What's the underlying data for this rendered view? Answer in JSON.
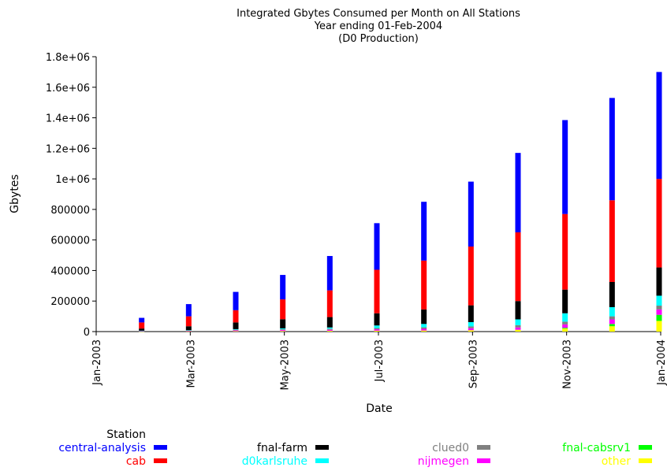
{
  "chart_data": {
    "type": "bar",
    "stacked": true,
    "title_lines": [
      "Integrated Gbytes Consumed per Month on All Stations",
      "Year ending 01-Feb-2004",
      "(D0 Production)"
    ],
    "xlabel": "Date",
    "ylabel": "Gbytes",
    "x_ticks": [
      "Jan-2003",
      "Mar-2003",
      "May-2003",
      "Jul-2003",
      "Sep-2003",
      "Nov-2003",
      "Jan-2004"
    ],
    "y_ticks": [
      "0",
      "200000",
      "400000",
      "600000",
      "800000",
      "1e+06",
      "1.2e+06",
      "1.4e+06",
      "1.6e+06",
      "1.8e+06"
    ],
    "ylim": [
      0,
      1800000
    ],
    "x": [
      "Feb-2003",
      "Mar-2003",
      "Apr-2003",
      "May-2003",
      "Jun-2003",
      "Jul-2003",
      "Aug-2003",
      "Sep-2003",
      "Oct-2003",
      "Nov-2003",
      "Dec-2003",
      "Jan-2004"
    ],
    "legend_title": "Station",
    "series": [
      {
        "name": "other",
        "color": "#ffff00",
        "values": [
          1000,
          2000,
          3000,
          4000,
          5000,
          6000,
          7000,
          9000,
          12000,
          20000,
          35000,
          70000
        ]
      },
      {
        "name": "fnal-cabsrv1",
        "color": "#00ff00",
        "values": [
          0,
          0,
          0,
          0,
          0,
          0,
          0,
          0,
          0,
          5000,
          15000,
          40000
        ]
      },
      {
        "name": "nijmegen",
        "color": "#ff00ff",
        "values": [
          2000,
          3000,
          5000,
          6000,
          7000,
          9000,
          11000,
          13000,
          15000,
          22000,
          30000,
          35000
        ]
      },
      {
        "name": "clued0",
        "color": "#808080",
        "values": [
          2000,
          3000,
          4000,
          5000,
          7000,
          8000,
          10000,
          12000,
          15000,
          18000,
          20000,
          25000
        ]
      },
      {
        "name": "d0karlsruhe",
        "color": "#00ffff",
        "values": [
          1000,
          2000,
          4000,
          6000,
          8000,
          17000,
          22000,
          28000,
          38000,
          55000,
          60000,
          65000
        ]
      },
      {
        "name": "fnal-farm",
        "color": "#000000",
        "values": [
          14000,
          25000,
          44000,
          60000,
          68000,
          80000,
          95000,
          110000,
          120000,
          155000,
          165000,
          185000
        ]
      },
      {
        "name": "cab",
        "color": "#ff0000",
        "values": [
          40000,
          65000,
          80000,
          130000,
          175000,
          285000,
          320000,
          385000,
          450000,
          495000,
          535000,
          580000
        ]
      },
      {
        "name": "central-analysis",
        "color": "#0000ff",
        "values": [
          30000,
          80000,
          120000,
          160000,
          225000,
          305000,
          385000,
          425000,
          520000,
          615000,
          670000,
          700000
        ]
      }
    ],
    "legend_order": [
      "central-analysis",
      "cab",
      "fnal-farm",
      "d0karlsruhe",
      "clued0",
      "nijmegen",
      "fnal-cabsrv1",
      "other"
    ],
    "grid": false,
    "legend_position": "bottom"
  }
}
